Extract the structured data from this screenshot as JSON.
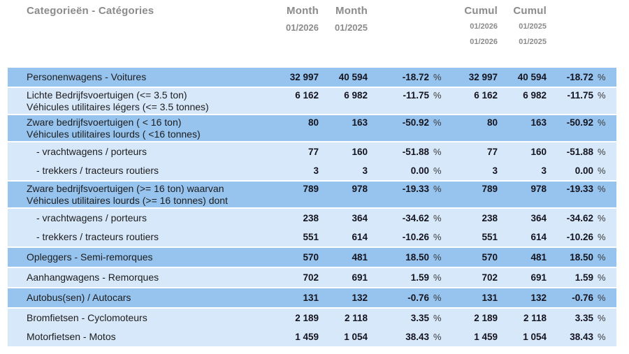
{
  "percent_symbol": "%",
  "colors": {
    "row_dark": "#97c4ef",
    "row_light": "#d7e8fb",
    "header_text": "#8b8b8b",
    "label_text": "#1c1c1c",
    "value_text": "#14141e"
  },
  "header": {
    "category_label": "Categorieën - Catégories",
    "month_current_label": "Month",
    "month_previous_label": "Month",
    "month_current_period": "01/2026",
    "month_previous_period": "01/2025",
    "cumul_current_label": "Cumul",
    "cumul_previous_label": "Cumul",
    "cumul_current_period_line1": "01/2026",
    "cumul_current_period_line2": "01/2026",
    "cumul_previous_period_line1": "01/2025",
    "cumul_previous_period_line2": "01/2025"
  },
  "table": {
    "blocks": [
      {
        "shade": "dark",
        "rows": [
          {
            "label_lines": [
              "Personenwagens - Voitures"
            ],
            "indent": false,
            "month_2026": "32 997",
            "month_2025": "40 594",
            "month_pct": "-18.72",
            "cumul_2026": "32 997",
            "cumul_2025": "40 594",
            "cumul_pct": "-18.72"
          }
        ]
      },
      {
        "shade": "light",
        "rows": [
          {
            "label_lines": [
              "Lichte Bedrijfsvoertuigen (<= 3.5 ton)",
              "Véhicules utilitaires légers (<= 3.5 tonnes)"
            ],
            "indent": false,
            "month_2026": "6 162",
            "month_2025": "6 982",
            "month_pct": "-11.75",
            "cumul_2026": "6 162",
            "cumul_2025": "6 982",
            "cumul_pct": "-11.75"
          }
        ]
      },
      {
        "shade": "dark",
        "rows": [
          {
            "label_lines": [
              "Zware bedrijfsvoertuigen ( < 16 ton)",
              "Véhicules utilitaires lourds ( <16 tonnes)"
            ],
            "indent": false,
            "month_2026": "80",
            "month_2025": "163",
            "month_pct": "-50.92",
            "cumul_2026": "80",
            "cumul_2025": "163",
            "cumul_pct": "-50.92"
          }
        ]
      },
      {
        "shade": "light",
        "rows": [
          {
            "label_lines": [
              "- vrachtwagens / porteurs"
            ],
            "indent": true,
            "month_2026": "77",
            "month_2025": "160",
            "month_pct": "-51.88",
            "cumul_2026": "77",
            "cumul_2025": "160",
            "cumul_pct": "-51.88"
          },
          {
            "label_lines": [
              "- trekkers / tracteurs routiers"
            ],
            "indent": true,
            "month_2026": "3",
            "month_2025": "3",
            "month_pct": "0.00",
            "cumul_2026": "3",
            "cumul_2025": "3",
            "cumul_pct": "0.00"
          }
        ]
      },
      {
        "shade": "dark",
        "rows": [
          {
            "label_lines": [
              "Zware bedrijfsvoertuigen (>= 16 ton) waarvan",
              "Véhicules utilitaires lourds (>= 16 tonnes) dont"
            ],
            "indent": false,
            "month_2026": "789",
            "month_2025": "978",
            "month_pct": "-19.33",
            "cumul_2026": "789",
            "cumul_2025": "978",
            "cumul_pct": "-19.33"
          }
        ]
      },
      {
        "shade": "light",
        "rows": [
          {
            "label_lines": [
              "- vrachtwagens / porteurs"
            ],
            "indent": true,
            "month_2026": "238",
            "month_2025": "364",
            "month_pct": "-34.62",
            "cumul_2026": "238",
            "cumul_2025": "364",
            "cumul_pct": "-34.62"
          },
          {
            "label_lines": [
              "- trekkers / tracteurs routiers"
            ],
            "indent": true,
            "month_2026": "551",
            "month_2025": "614",
            "month_pct": "-10.26",
            "cumul_2026": "551",
            "cumul_2025": "614",
            "cumul_pct": "-10.26"
          }
        ]
      },
      {
        "shade": "dark",
        "rows": [
          {
            "label_lines": [
              "Opleggers - Semi-remorques"
            ],
            "indent": false,
            "month_2026": "570",
            "month_2025": "481",
            "month_pct": "18.50",
            "cumul_2026": "570",
            "cumul_2025": "481",
            "cumul_pct": "18.50"
          }
        ]
      },
      {
        "shade": "light",
        "rows": [
          {
            "label_lines": [
              "Aanhangwagens - Remorques"
            ],
            "indent": false,
            "month_2026": "702",
            "month_2025": "691",
            "month_pct": "1.59",
            "cumul_2026": "702",
            "cumul_2025": "691",
            "cumul_pct": "1.59"
          }
        ]
      },
      {
        "shade": "dark",
        "rows": [
          {
            "label_lines": [
              "Autobus(sen) / Autocars"
            ],
            "indent": false,
            "month_2026": "131",
            "month_2025": "132",
            "month_pct": "-0.76",
            "cumul_2026": "131",
            "cumul_2025": "132",
            "cumul_pct": "-0.76"
          }
        ]
      },
      {
        "shade": "light",
        "rows": [
          {
            "label_lines": [
              "Bromfietsen - Cyclomoteurs"
            ],
            "indent": false,
            "month_2026": "2 189",
            "month_2025": "2 118",
            "month_pct": "3.35",
            "cumul_2026": "2 189",
            "cumul_2025": "2 118",
            "cumul_pct": "3.35"
          },
          {
            "label_lines": [
              "Motorfietsen - Motos"
            ],
            "indent": false,
            "month_2026": "1 459",
            "month_2025": "1 054",
            "month_pct": "38.43",
            "cumul_2026": "1 459",
            "cumul_2025": "1 054",
            "cumul_pct": "38.43"
          }
        ]
      }
    ]
  }
}
